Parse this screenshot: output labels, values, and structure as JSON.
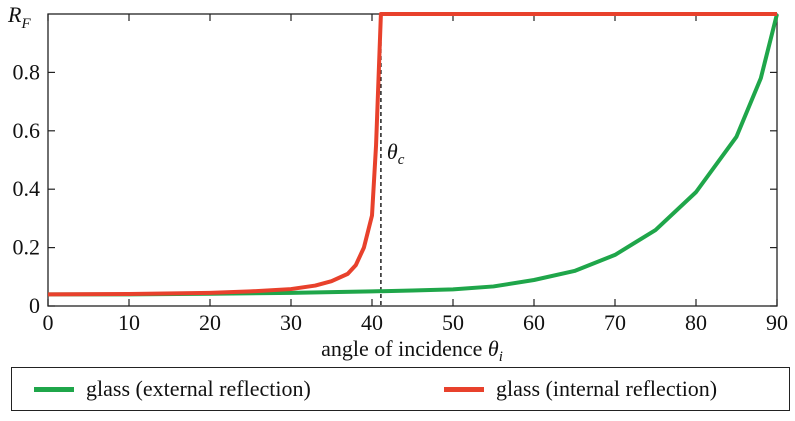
{
  "chart_data": {
    "type": "line",
    "xlabel": "angle of incidence",
    "xlabel_symbol": "θ",
    "xlabel_sub": "i",
    "ylabel": "R",
    "ylabel_sub": "F",
    "xlim": [
      0,
      90
    ],
    "ylim": [
      0,
      1
    ],
    "xticks": [
      0,
      10,
      20,
      30,
      40,
      50,
      60,
      70,
      80,
      90
    ],
    "yticks": [
      0,
      0.2,
      0.4,
      0.6,
      0.8
    ],
    "ytick_labels": [
      "0",
      "0.2",
      "0.4",
      "0.6",
      "0.8"
    ],
    "grid": false,
    "legend_position": "bottom",
    "annotation": {
      "x": 41.1,
      "y": 0.53,
      "symbol": "θ",
      "sub": "c"
    },
    "critical_angle": 41.1,
    "series": [
      {
        "name": "glass (external reflection)",
        "color": "#1fa64a",
        "x": [
          0,
          10,
          20,
          30,
          40,
          45,
          50,
          55,
          60,
          65,
          70,
          75,
          80,
          85,
          88,
          90
        ],
        "y": [
          0.04,
          0.04,
          0.042,
          0.045,
          0.05,
          0.053,
          0.057,
          0.067,
          0.089,
          0.12,
          0.175,
          0.26,
          0.39,
          0.58,
          0.78,
          1.0
        ]
      },
      {
        "name": "glass (internal reflection)",
        "color": "#e8412c",
        "x": [
          0,
          10,
          20,
          25,
          30,
          33,
          35,
          37,
          38,
          39,
          40,
          40.5,
          41.1,
          41.8,
          90
        ],
        "y": [
          0.04,
          0.041,
          0.045,
          0.05,
          0.058,
          0.07,
          0.085,
          0.11,
          0.14,
          0.2,
          0.31,
          0.55,
          1.0,
          1.0,
          1.0
        ]
      }
    ]
  }
}
